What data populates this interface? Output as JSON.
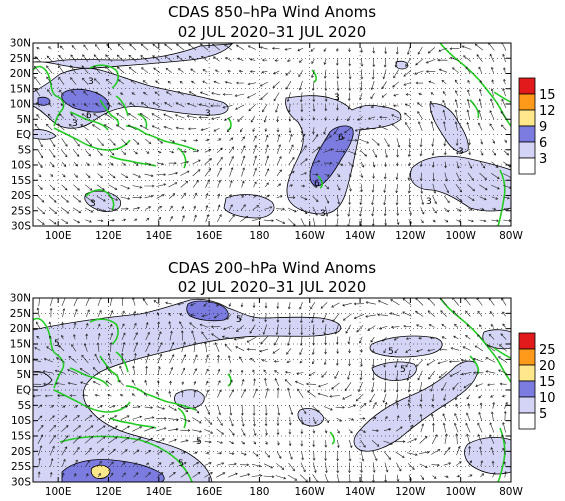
{
  "panels": [
    {
      "title_line1": "CDAS 850–hPa Wind Anoms",
      "title_line2": "02 JUL 2020–31 JUL 2020",
      "lat_ticks": [
        "30N",
        "25N",
        "20N",
        "15N",
        "10N",
        "5N",
        "EQ",
        "5S",
        "10S",
        "15S",
        "20S",
        "25S",
        "30S"
      ],
      "lon_ticks": [
        "100E",
        "120E",
        "140E",
        "160E",
        "180",
        "160W",
        "140W",
        "120W",
        "100W",
        "80W"
      ],
      "colorbar": {
        "labels": [
          "15",
          "12",
          "9",
          "6",
          "3"
        ],
        "colors": [
          "#e31a1c",
          "#ff9a1a",
          "#ffe78c",
          "#7b7be0",
          "#d4d4f6",
          "#ffffff"
        ]
      },
      "contour_labels": [
        "3",
        "3",
        "6",
        "3",
        "3",
        "6",
        "6",
        "3",
        "3",
        "3",
        "3"
      ]
    },
    {
      "title_line1": "CDAS 200–hPa Wind Anoms",
      "title_line2": "02 JUL 2020–31 JUL 2020",
      "lat_ticks": [
        "30N",
        "25N",
        "20N",
        "15N",
        "10N",
        "5N",
        "EQ",
        "5S",
        "10S",
        "15S",
        "20S",
        "25S",
        "30S"
      ],
      "lon_ticks": [
        "100E",
        "120E",
        "140E",
        "160E",
        "180",
        "160W",
        "140W",
        "120W",
        "100W",
        "80W"
      ],
      "colorbar": {
        "labels": [
          "25",
          "20",
          "15",
          "10",
          "5"
        ],
        "colors": [
          "#e31a1c",
          "#ff9a1a",
          "#ffe78c",
          "#7b7be0",
          "#d4d4f6",
          "#ffffff"
        ]
      },
      "contour_labels": [
        "5",
        "5",
        "5",
        "5",
        "5",
        "5"
      ]
    }
  ],
  "colors": {
    "shade_low": "#d4d4f6",
    "shade_mid": "#7b7be0",
    "shade_high": "#ffe78c",
    "coastline": "#22cc22",
    "arrow": "#222222"
  }
}
